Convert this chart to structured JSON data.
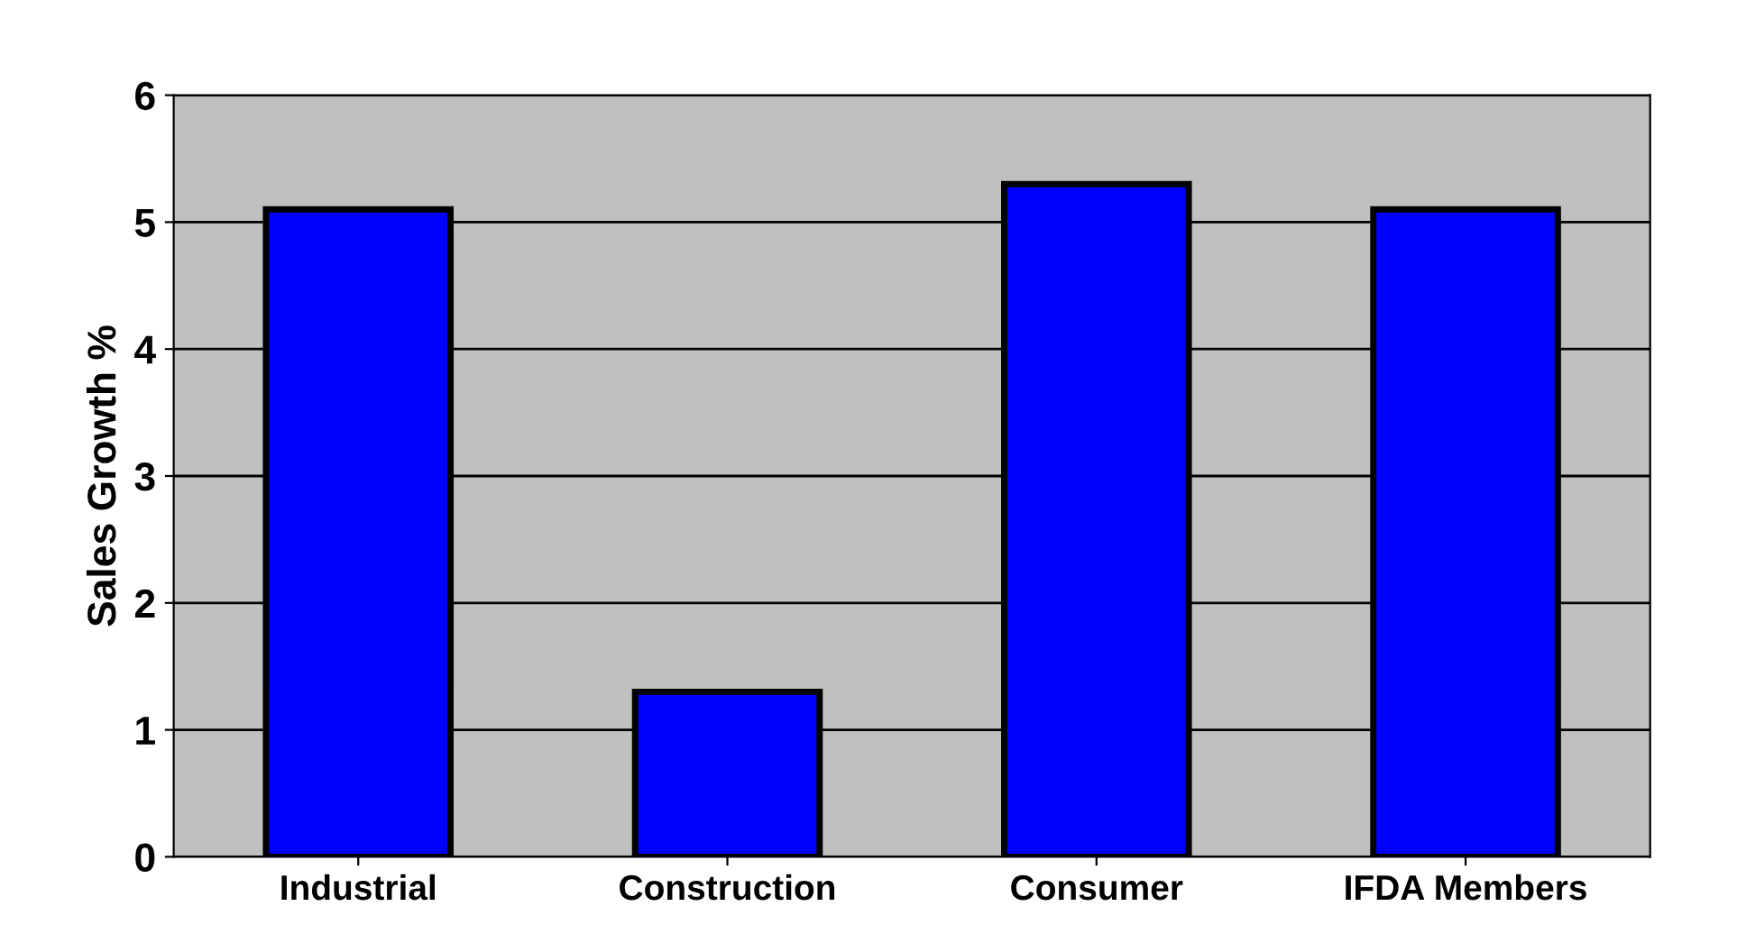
{
  "chart_data": {
    "type": "bar",
    "ylabel": "Sales Growth %",
    "categories": [
      "Industrial",
      "Construction",
      "Consumer",
      "IFDA Members"
    ],
    "values": [
      5.1,
      1.3,
      5.3,
      5.1
    ],
    "color": "#0000ff",
    "ylim": [
      0,
      6
    ],
    "yticks": [
      0,
      1,
      2,
      3,
      4,
      5,
      6
    ],
    "grid": "y"
  }
}
